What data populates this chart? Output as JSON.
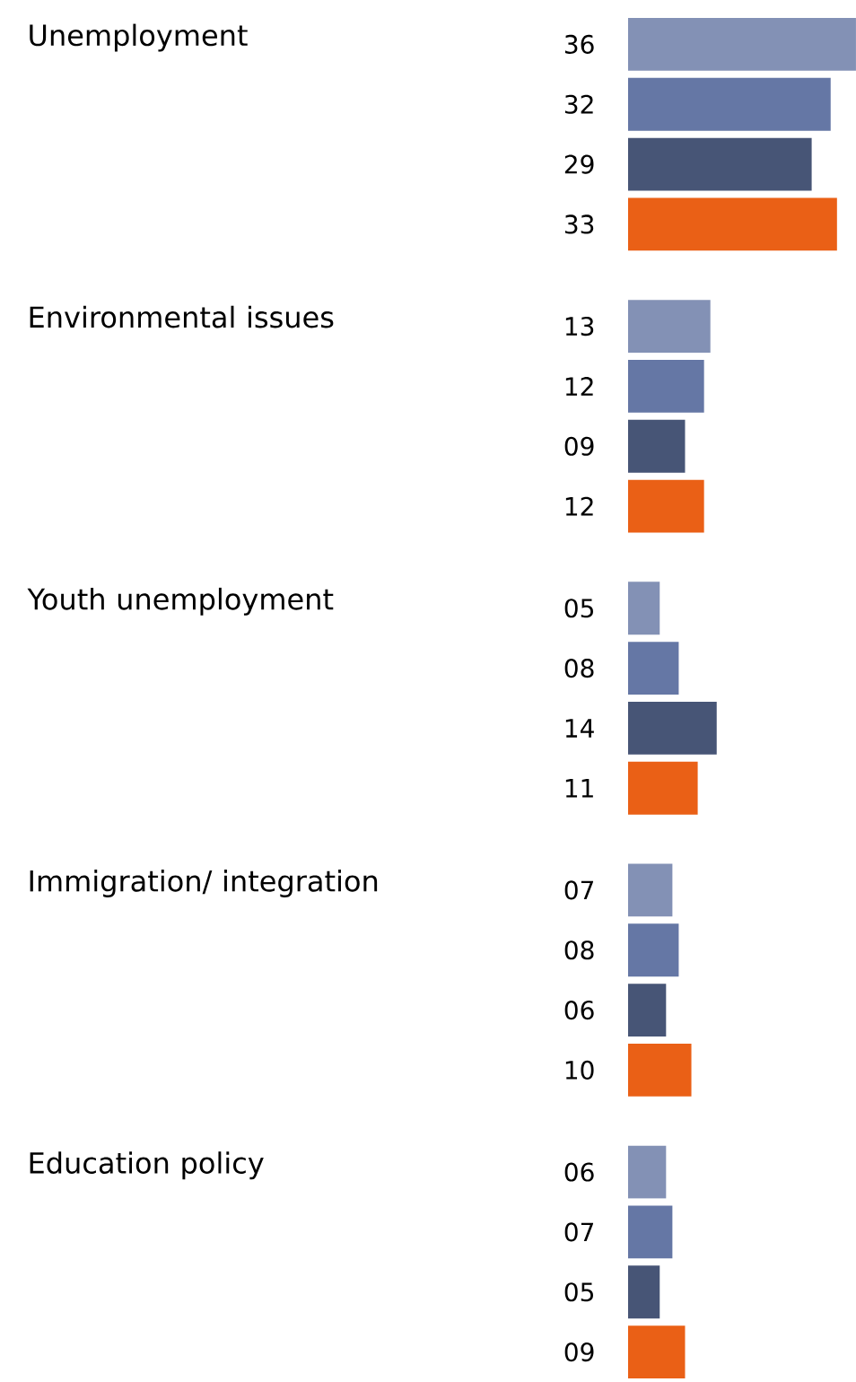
{
  "chart_data": {
    "type": "bar",
    "orientation": "horizontal",
    "categories": [
      "Unemployment",
      "Environmental issues",
      "Youth unemployment",
      "Immigration/ integration",
      "Education policy"
    ],
    "series": [
      {
        "color": "#8391b5",
        "values": [
          36,
          13,
          5,
          7,
          6
        ],
        "value_labels": [
          "36",
          "13",
          "05",
          "07",
          "06"
        ]
      },
      {
        "color": "#6577a5",
        "values": [
          32,
          12,
          8,
          8,
          7
        ],
        "value_labels": [
          "32",
          "12",
          "08",
          "08",
          "07"
        ]
      },
      {
        "color": "#475576",
        "values": [
          29,
          9,
          14,
          6,
          5
        ],
        "value_labels": [
          "29",
          "09",
          "14",
          "06",
          "05"
        ]
      },
      {
        "color": "#ea6016",
        "values": [
          33,
          12,
          11,
          10,
          9
        ],
        "value_labels": [
          "33",
          "12",
          "11",
          "10",
          "09"
        ]
      }
    ]
  }
}
